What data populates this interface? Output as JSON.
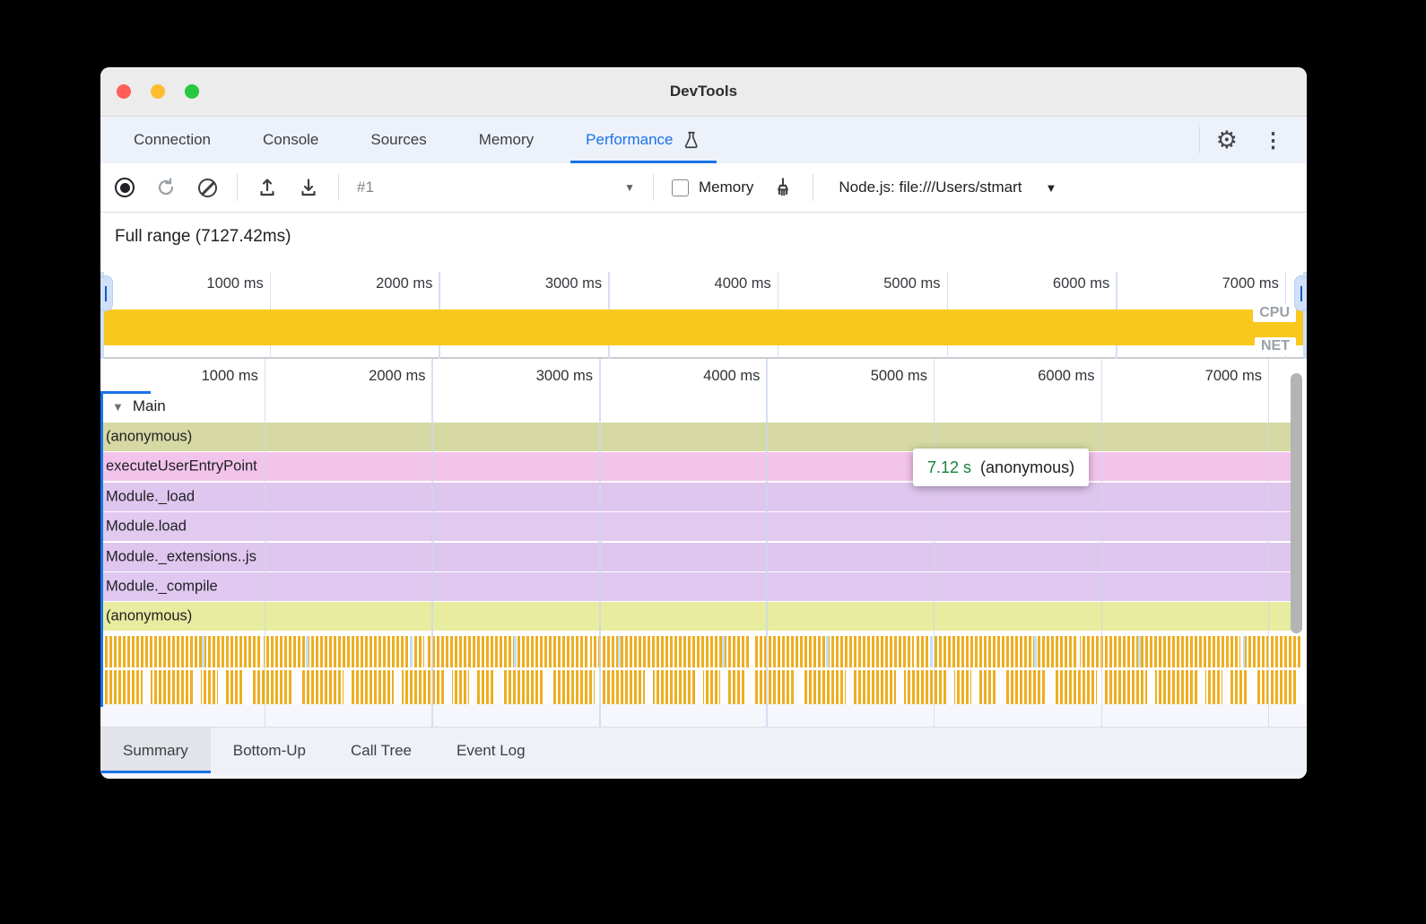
{
  "window": {
    "title": "DevTools"
  },
  "main_tabs": {
    "items": [
      {
        "label": "Connection",
        "active": false
      },
      {
        "label": "Console",
        "active": false
      },
      {
        "label": "Sources",
        "active": false
      },
      {
        "label": "Memory",
        "active": false
      },
      {
        "label": "Performance",
        "active": true,
        "icon": "flask-icon"
      }
    ]
  },
  "toolbar": {
    "history_value": "#1",
    "memory_label": "Memory",
    "memory_checked": false,
    "target_select": "Node.js: file:///Users/stmart"
  },
  "overview": {
    "full_range": "Full range (7127.42ms)",
    "ticks": [
      "1000 ms",
      "2000 ms",
      "3000 ms",
      "4000 ms",
      "5000 ms",
      "6000 ms",
      "7000 ms"
    ],
    "cpu_label": "CPU",
    "net_label": "NET"
  },
  "flame": {
    "ticks": [
      "1000 ms",
      "2000 ms",
      "3000 ms",
      "4000 ms",
      "5000 ms",
      "6000 ms",
      "7000 ms"
    ],
    "track_label": "Main",
    "rows": [
      {
        "label": "(anonymous)",
        "color": "#d6d9a3"
      },
      {
        "label": "executeUserEntryPoint",
        "color": "#f3c4eb"
      },
      {
        "label": "Module._load",
        "color": "#dfc6ef"
      },
      {
        "label": "Module.load",
        "color": "#e1c9f0"
      },
      {
        "label": "Module._extensions..js",
        "color": "#dfc6ef"
      },
      {
        "label": "Module._compile",
        "color": "#e0c8f0"
      },
      {
        "label": "(anonymous)",
        "color": "#e7ec9f"
      }
    ],
    "tooltip": {
      "duration": "7.12 s",
      "label": "(anonymous)"
    }
  },
  "bottom_tabs": {
    "items": [
      {
        "label": "Summary",
        "active": true
      },
      {
        "label": "Bottom-Up",
        "active": false
      },
      {
        "label": "Call Tree",
        "active": false
      },
      {
        "label": "Event Log",
        "active": false
      }
    ]
  },
  "colors": {
    "accent": "#1a73e8",
    "cpu_bar": "#f9c81e",
    "stripe": "#eeae20",
    "tooltip_duration": "#188038"
  }
}
